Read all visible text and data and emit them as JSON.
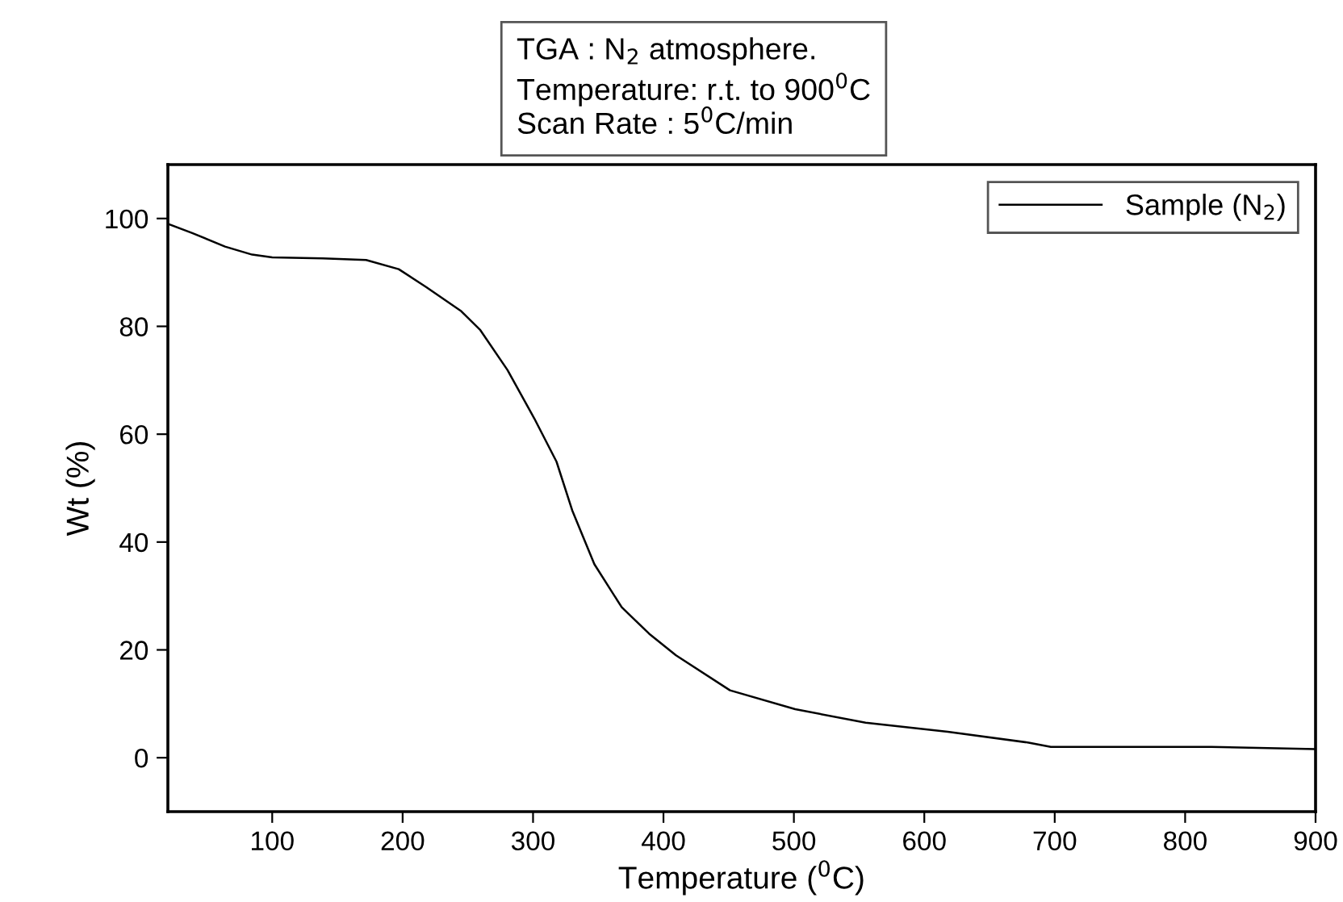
{
  "chart_data": {
    "type": "line",
    "annotations": [
      "TGA : N$_{2}$ atmosphere.",
      "Temperature: r.t. to 900$^{0}$C",
      "Scan Rate : 5$^{0}$C/min"
    ],
    "xlabel": "Temperature ($^{0}$C)",
    "ylabel": "Wt (%)",
    "x": [
      20,
      38.7,
      63.8,
      84.6,
      100,
      138.8,
      172,
      197,
      218,
      245,
      259.6,
      280.4,
      301,
      318,
      330,
      347,
      368,
      389,
      409.6,
      451,
      501,
      555,
      618,
      680,
      697,
      820,
      900
    ],
    "series": [
      {
        "name": "Sample (N$_{2}$)",
        "color": "#000000",
        "values": [
          99.0,
          97.3,
          94.8,
          93.3,
          92.8,
          92.6,
          92.3,
          90.6,
          87.3,
          82.8,
          79.3,
          71.9,
          62.9,
          54.9,
          45.9,
          35.9,
          27.9,
          23.0,
          19.0,
          12.5,
          9.0,
          6.5,
          4.8,
          2.8,
          2.0,
          2.0,
          1.6
        ]
      }
    ],
    "xlim": [
      20,
      900
    ],
    "ylim": [
      -10,
      110
    ],
    "xticks": [
      100,
      200,
      300,
      400,
      500,
      600,
      700,
      800,
      900
    ],
    "yticks": [
      0,
      20,
      40,
      60,
      80,
      100
    ],
    "legend": "top right",
    "grid": false,
    "marker": "none",
    "line_style": "solid"
  }
}
